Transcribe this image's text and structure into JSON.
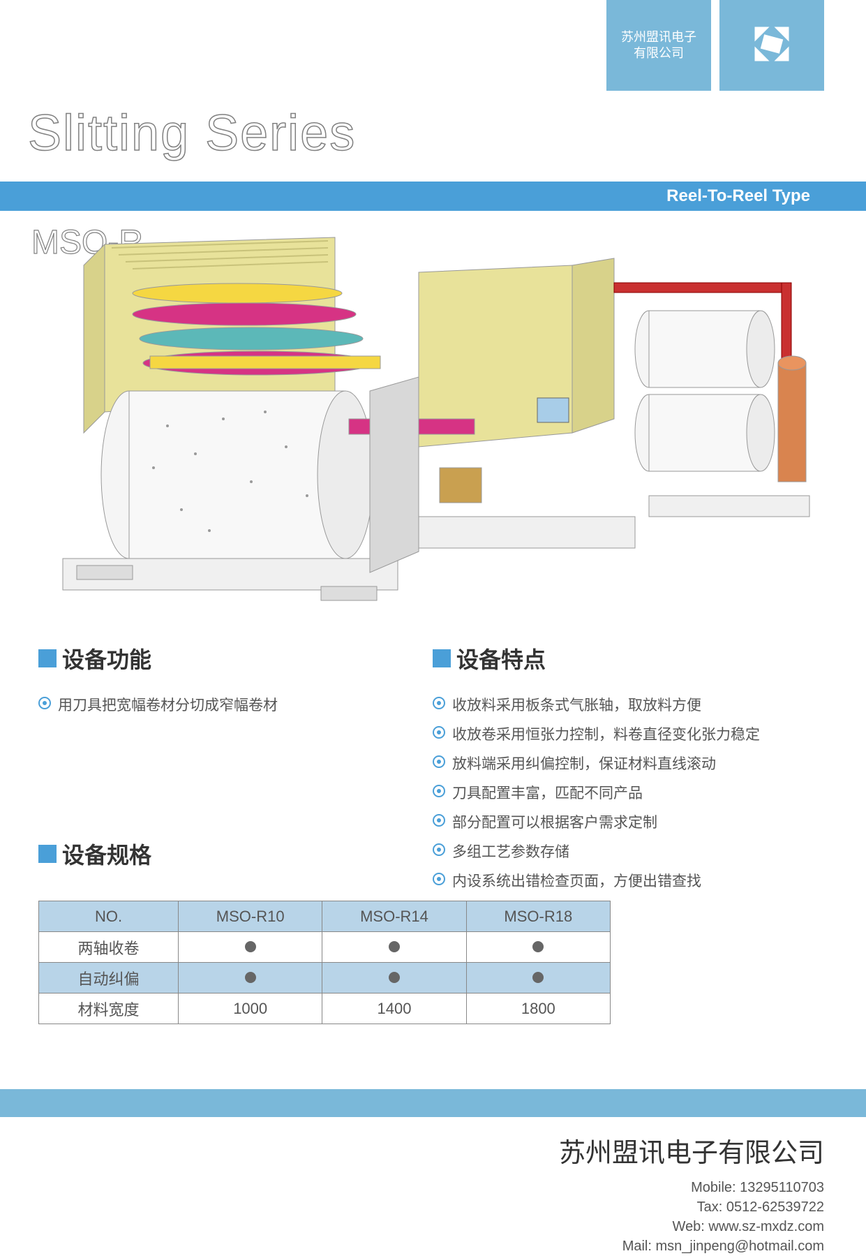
{
  "header": {
    "company_short": "苏州盟讯电子\n有限公司",
    "main_title": "Slitting Series",
    "bar_text": "Reel-To-Reel Type",
    "model": "MSO-R"
  },
  "sections": {
    "function": {
      "title": "设备功能",
      "items": [
        "用刀具把宽幅卷材分切成窄幅卷材"
      ]
    },
    "features": {
      "title": "设备特点",
      "items": [
        "收放料采用板条式气胀轴，取放料方便",
        "收放卷采用恒张力控制，料卷直径变化张力稳定",
        "放料端采用纠偏控制，保证材料直线滚动",
        "刀具配置丰富，匹配不同产品",
        "部分配置可以根据客户需求定制",
        "多组工艺参数存储",
        "内设系统出错检查页面，方便出错查找"
      ]
    },
    "specs": {
      "title": "设备规格"
    }
  },
  "spec_table": {
    "header": [
      "NO.",
      "MSO-R10",
      "MSO-R14",
      "MSO-R18"
    ],
    "rows": [
      {
        "label": "两轴收卷",
        "cells": [
          "dot",
          "dot",
          "dot"
        ],
        "alt": false
      },
      {
        "label": "自动纠偏",
        "cells": [
          "dot",
          "dot",
          "dot"
        ],
        "alt": true
      },
      {
        "label": "材料宽度",
        "cells": [
          "1000",
          "1400",
          "1800"
        ],
        "alt": false
      }
    ],
    "colors": {
      "header_bg": "#b8d4e8",
      "border": "#888888",
      "dot": "#666666"
    }
  },
  "footer": {
    "company": "苏州盟讯电子有限公司",
    "mobile": "Mobile: 13295110703",
    "tax": "Tax: 0512-62539722",
    "web": "Web: www.sz-mxdz.com",
    "mail": "Mail: msn_jinpeng@hotmail.com"
  },
  "machine": {
    "colors": {
      "body": "#e8e29a",
      "roller_pink": "#d63384",
      "roller_yellow": "#f5d742",
      "roller_teal": "#5cb8b8",
      "roller_white": "#f5f5f5",
      "frame_orange": "#d9534f",
      "frame_red": "#c93030",
      "base_gray": "#e0e0e0",
      "screen": "#a8cde8"
    }
  },
  "style": {
    "accent": "#4a9fd8",
    "accent_light": "#7ab8d9",
    "text": "#555555",
    "title_text": "#333333"
  }
}
